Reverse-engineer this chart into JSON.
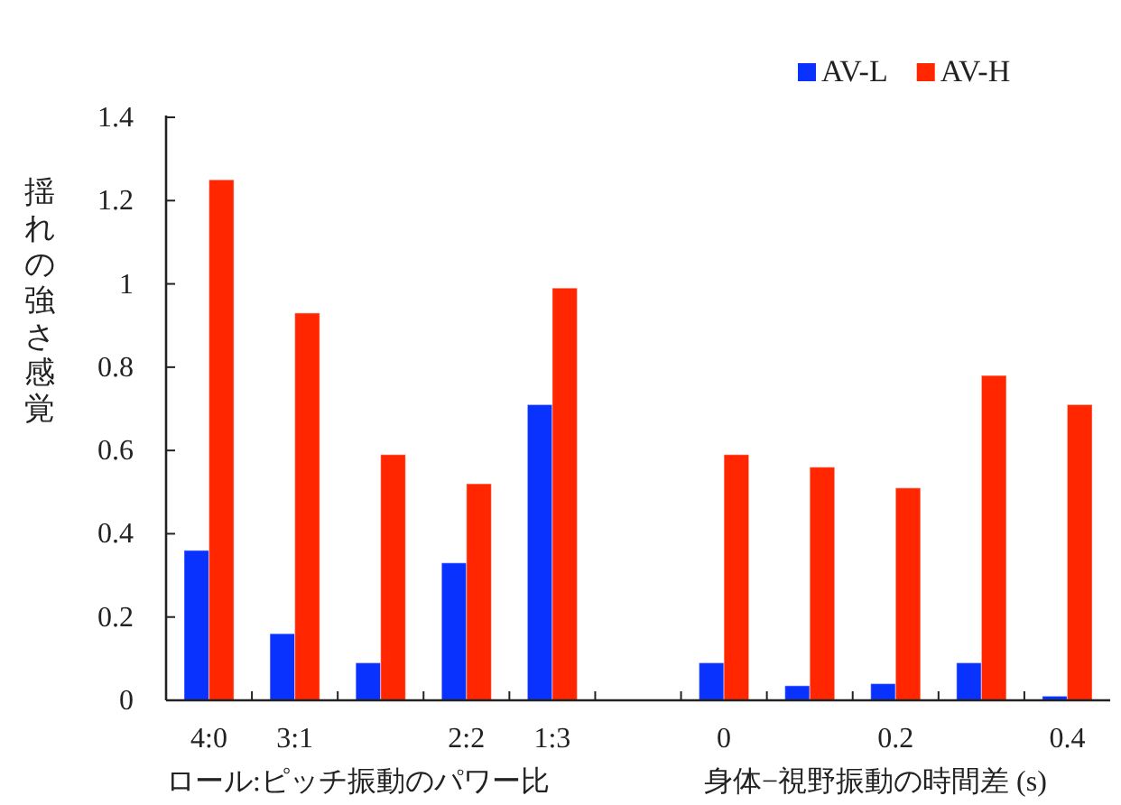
{
  "chart_data": {
    "type": "bar",
    "categories": [
      "4:0",
      "3:1",
      null,
      "2:2",
      "1:3",
      null,
      "0",
      null,
      "0.2",
      null,
      "0.4"
    ],
    "series": [
      {
        "name": "AV-L",
        "color": "#0a32ff",
        "values": [
          0.36,
          0.16,
          0.09,
          0.33,
          0.71,
          null,
          0.09,
          0.035,
          0.04,
          0.09,
          0.01
        ]
      },
      {
        "name": "AV-H",
        "color": "#ff2600",
        "values": [
          1.25,
          0.93,
          0.59,
          0.52,
          0.99,
          null,
          0.59,
          0.56,
          0.51,
          0.78,
          0.71
        ]
      }
    ],
    "ylabel": "揺れの強さ感覚",
    "xlabel": "ロール:ピッチ振動のパワー比",
    "annotations": [
      "身体−視野振動の時間差 (s)"
    ],
    "ylim": [
      0,
      1.4
    ],
    "yticks": [
      0,
      {
        "value": 0.2,
        "label": "0.2"
      },
      {
        "value": 0.4,
        "label": "0.4"
      },
      {
        "value": 0.6,
        "label": "0.6"
      },
      {
        "value": 0.8,
        "label": "0.8"
      },
      1,
      {
        "value": 1.2,
        "label": "1.2"
      },
      {
        "value": 1.4,
        "label": "1.4"
      }
    ],
    "legend": "top right",
    "grid": false
  }
}
